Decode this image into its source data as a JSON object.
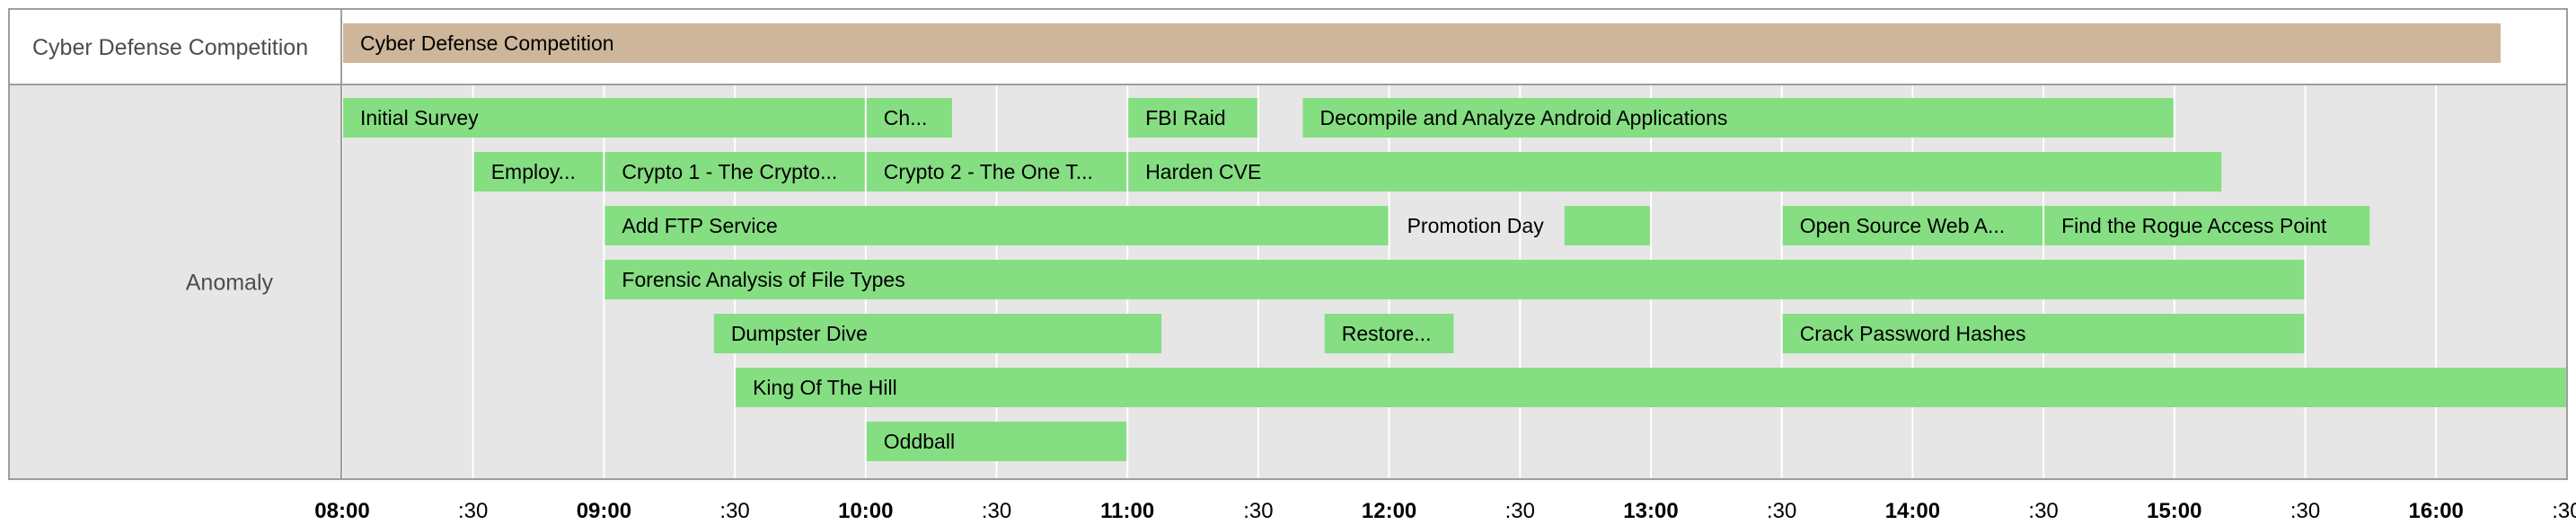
{
  "chart_data": {
    "type": "timeline",
    "rows": [
      {
        "label": "Cyber Defense Competition",
        "color": "#cdb69a"
      },
      {
        "label": "Anomaly",
        "color": "#86de82"
      }
    ],
    "bars": [
      {
        "row": "Cyber Defense Competition",
        "label": "Cyber Defense Competition",
        "start": "08:00",
        "end": "16:15",
        "lane": 0,
        "show_label": true
      },
      {
        "row": "Anomaly",
        "label": "Initial Survey",
        "start": "08:00",
        "end": "10:00",
        "lane": 0,
        "show_label": true
      },
      {
        "row": "Anomaly",
        "label": "Ch...",
        "start": "10:00",
        "end": "10:20",
        "lane": 0,
        "show_label": true
      },
      {
        "row": "Anomaly",
        "label": "FBI Raid",
        "start": "11:00",
        "end": "11:30",
        "lane": 0,
        "show_label": true
      },
      {
        "row": "Anomaly",
        "label": "Decompile and Analyze Android Applications",
        "start": "11:40",
        "end": "15:00",
        "lane": 0,
        "show_label": true
      },
      {
        "row": "Anomaly",
        "label": "Employ...",
        "start": "08:30",
        "end": "09:00",
        "lane": 1,
        "show_label": true
      },
      {
        "row": "Anomaly",
        "label": "Crypto 1 - The Crypto...",
        "start": "09:00",
        "end": "10:00",
        "lane": 1,
        "show_label": true
      },
      {
        "row": "Anomaly",
        "label": "Crypto 2 - The One T...",
        "start": "10:00",
        "end": "11:00",
        "lane": 1,
        "show_label": true
      },
      {
        "row": "Anomaly",
        "label": "Harden CVE",
        "start": "11:00",
        "end": "15:11",
        "lane": 1,
        "show_label": true
      },
      {
        "row": "Anomaly",
        "label": "Add FTP Service",
        "start": "09:00",
        "end": "12:00",
        "lane": 2,
        "show_label": true
      },
      {
        "row": "Anomaly",
        "label": "Promotion Day",
        "start": "12:00",
        "end": "12:40",
        "lane": 2,
        "show_label": false
      },
      {
        "row": "Anomaly",
        "label": "",
        "start": "12:40",
        "end": "13:00",
        "lane": 2,
        "show_label": true
      },
      {
        "row": "Anomaly",
        "label": "Open Source Web A...",
        "start": "13:30",
        "end": "14:30",
        "lane": 2,
        "show_label": true
      },
      {
        "row": "Anomaly",
        "label": "Find the Rogue Access Point",
        "start": "14:30",
        "end": "15:45",
        "lane": 2,
        "show_label": true
      },
      {
        "row": "Anomaly",
        "label": "Forensic Analysis of File Types",
        "start": "09:00",
        "end": "15:30",
        "lane": 3,
        "show_label": true
      },
      {
        "row": "Anomaly",
        "label": "Dumpster Dive",
        "start": "09:25",
        "end": "11:08",
        "lane": 4,
        "show_label": true
      },
      {
        "row": "Anomaly",
        "label": "Restore...",
        "start": "11:45",
        "end": "12:15",
        "lane": 4,
        "show_label": true
      },
      {
        "row": "Anomaly",
        "label": "Crack Password Hashes",
        "start": "13:30",
        "end": "15:30",
        "lane": 4,
        "show_label": true
      },
      {
        "row": "Anomaly",
        "label": "King Of The Hill",
        "start": "09:30",
        "end": "16:30",
        "lane": 5,
        "show_label": true
      },
      {
        "row": "Anomaly",
        "label": "Oddball",
        "start": "10:00",
        "end": "11:00",
        "lane": 6,
        "show_label": true
      }
    ],
    "free_labels": [
      {
        "text": "Promotion Day",
        "row": "Anomaly",
        "lane": 2,
        "time": "12:00"
      }
    ],
    "x_ticks": [
      {
        "label": "08:00",
        "time": "08:00",
        "bold": true
      },
      {
        "label": ":30",
        "time": "08:30",
        "bold": false
      },
      {
        "label": "09:00",
        "time": "09:00",
        "bold": true
      },
      {
        "label": ":30",
        "time": "09:30",
        "bold": false
      },
      {
        "label": "10:00",
        "time": "10:00",
        "bold": true
      },
      {
        "label": ":30",
        "time": "10:30",
        "bold": false
      },
      {
        "label": "11:00",
        "time": "11:00",
        "bold": true
      },
      {
        "label": ":30",
        "time": "11:30",
        "bold": false
      },
      {
        "label": "12:00",
        "time": "12:00",
        "bold": true
      },
      {
        "label": ":30",
        "time": "12:30",
        "bold": false
      },
      {
        "label": "13:00",
        "time": "13:00",
        "bold": true
      },
      {
        "label": ":30",
        "time": "13:30",
        "bold": false
      },
      {
        "label": "14:00",
        "time": "14:00",
        "bold": true
      },
      {
        "label": ":30",
        "time": "14:30",
        "bold": false
      },
      {
        "label": "15:00",
        "time": "15:00",
        "bold": true
      },
      {
        "label": ":30",
        "time": "15:30",
        "bold": false
      },
      {
        "label": "16:00",
        "time": "16:00",
        "bold": true
      },
      {
        "label": ":30",
        "time": "16:30",
        "bold": false
      }
    ],
    "x_range": [
      "08:00",
      "16:30"
    ],
    "grid": true,
    "colors": {
      "odd_row_bg": "#ffffff",
      "even_row_bg": "#e6e6e6",
      "grid_line": "#ffffff",
      "border": "#9e9e9e"
    }
  }
}
